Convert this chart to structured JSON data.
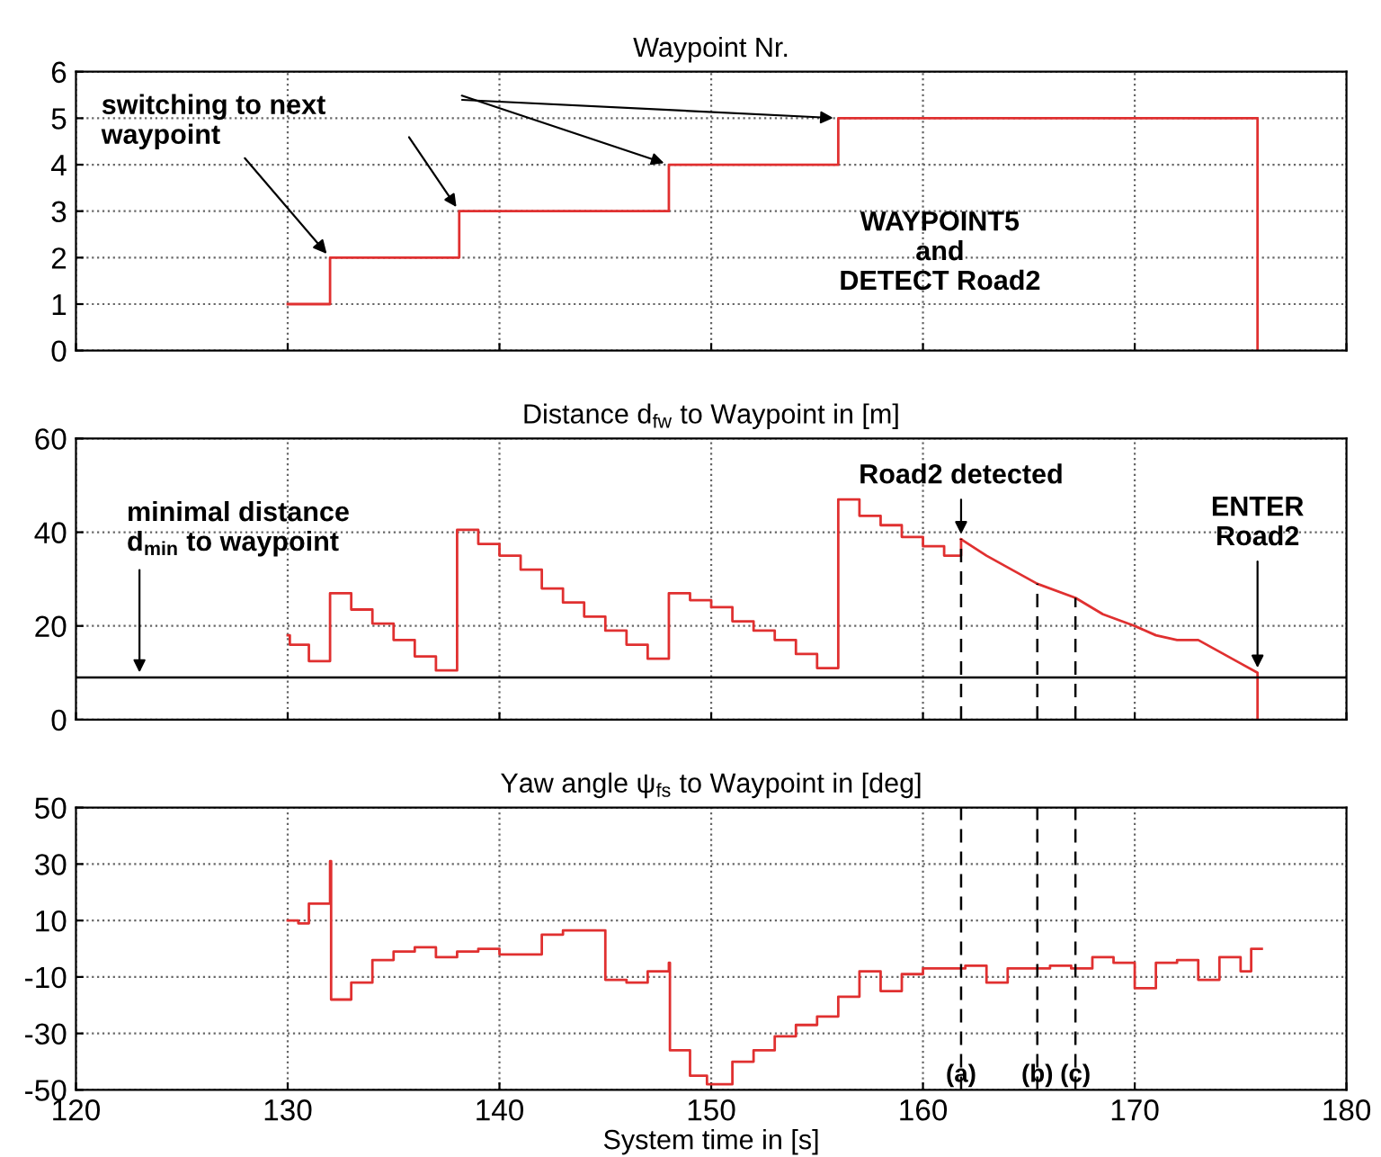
{
  "chart_data": [
    {
      "type": "step",
      "title": "Waypoint Nr.",
      "xlim": [
        120,
        180
      ],
      "xticks": [
        120,
        130,
        140,
        150,
        160,
        170,
        180
      ],
      "ylim": [
        0,
        6
      ],
      "yticks": [
        0,
        1,
        2,
        3,
        4,
        5,
        6
      ],
      "grid": true,
      "tick_labels": "y",
      "series": [
        {
          "color": "#e03030",
          "x": [
            130,
            132,
            138.1,
            148,
            156,
            175.8
          ],
          "values": [
            1,
            2,
            3,
            4,
            5,
            0
          ]
        }
      ],
      "annotations": [
        {
          "text": "switching to next\nwaypoint",
          "x": 132,
          "y": 2
        },
        "WAYPOINT5\nand\nDETECT Road2"
      ]
    },
    {
      "type": "step",
      "title": "Distance d$_{fw}$ to Waypoint in [m]",
      "xlim": [
        120,
        180
      ],
      "xticks": [
        120,
        130,
        140,
        150,
        160,
        170,
        180
      ],
      "ylim": [
        0,
        60
      ],
      "yticks": [
        0,
        20,
        40,
        60
      ],
      "grid": true,
      "tick_labels": "y",
      "series": [
        {
          "color": "#e03030",
          "x": [
            130,
            130.1,
            131,
            132,
            133,
            134,
            135,
            136,
            137,
            138,
            139,
            140,
            141,
            142,
            143,
            144,
            145,
            146,
            147,
            148,
            149,
            150,
            151,
            152,
            153,
            154,
            155,
            156,
            157,
            158,
            159,
            160,
            161,
            161.8
          ],
          "values": [
            18,
            16,
            12.5,
            27,
            23.5,
            20.5,
            17,
            13.5,
            10.5,
            40.5,
            37.5,
            35,
            32,
            28,
            25,
            22,
            19,
            16,
            13,
            27,
            25.5,
            24,
            21,
            19,
            17,
            14,
            11,
            47,
            43.5,
            41.5,
            39,
            37,
            35,
            38.5
          ]
        },
        {
          "type": "line",
          "color": "#e03030",
          "x": [
            161.8,
            163,
            165.4,
            167.2,
            168.5,
            170,
            171,
            172,
            173,
            174,
            175,
            175.8,
            175.8
          ],
          "values": [
            38.5,
            35,
            29,
            26,
            22.5,
            20,
            18,
            17,
            17,
            14.5,
            12,
            10,
            0
          ]
        }
      ],
      "ref_lines": [
        {
          "axis": "y",
          "value": 9,
          "color": "#000000",
          "line_style": "solid"
        },
        {
          "axis": "x",
          "value": 161.8,
          "color": "#000000",
          "line_style": "dashed"
        },
        {
          "axis": "x",
          "value": 165.4,
          "color": "#000000",
          "line_style": "dashed"
        },
        {
          "axis": "x",
          "value": 167.2,
          "color": "#000000",
          "line_style": "dashed"
        }
      ],
      "annotations": [
        {
          "text": "minimal distance\nd$_{min}$ to waypoint",
          "x": 123,
          "y": 9
        },
        {
          "text": "Road2 detected",
          "x": 161.8,
          "y": 38.5
        },
        {
          "text": "ENTER\nRoad2",
          "x": 175.8,
          "y": 10
        }
      ]
    },
    {
      "type": "step",
      "title": "Yaw angle ψ$_{fs}$ to Waypoint in [deg]",
      "xlabel": "System time in [s]",
      "xlim": [
        120,
        180
      ],
      "xticks": [
        120,
        130,
        140,
        150,
        160,
        170,
        180
      ],
      "ylim": [
        -50,
        50
      ],
      "yticks": [
        -50,
        -30,
        -10,
        10,
        30,
        50
      ],
      "grid": true,
      "series": [
        {
          "color": "#e03030",
          "x": [
            130,
            130.5,
            131,
            132,
            132.05,
            133,
            134,
            135,
            136,
            137,
            138,
            139,
            140,
            142,
            143,
            145,
            146,
            147,
            148,
            148.05,
            149,
            149.8,
            151,
            152,
            153,
            154,
            155,
            156,
            157,
            158,
            159,
            160,
            162,
            163,
            164,
            166,
            167,
            168,
            169,
            170,
            171,
            172,
            173,
            174,
            175,
            175.5,
            176
          ],
          "values": [
            10,
            9,
            16,
            31,
            -18,
            -12,
            -4,
            -1,
            0.5,
            -3,
            -1,
            0,
            -2,
            5,
            6.5,
            -11,
            -12,
            -8,
            -5,
            -36,
            -45,
            -48,
            -40,
            -36,
            -31,
            -27,
            -24,
            -17,
            -8,
            -15,
            -9,
            -7,
            -6,
            -12,
            -7,
            -6,
            -7,
            -3,
            -5,
            -14,
            -5,
            -4,
            -11,
            -3,
            -8,
            0,
            0
          ]
        }
      ],
      "ref_lines": [
        {
          "axis": "x",
          "value": 161.8,
          "label": "(a)",
          "color": "#000000",
          "line_style": "dashed"
        },
        {
          "axis": "x",
          "value": 165.4,
          "label": "(b)",
          "color": "#000000",
          "line_style": "dashed"
        },
        {
          "axis": "x",
          "value": 167.2,
          "label": "(c)",
          "color": "#000000",
          "line_style": "dashed"
        }
      ]
    }
  ]
}
